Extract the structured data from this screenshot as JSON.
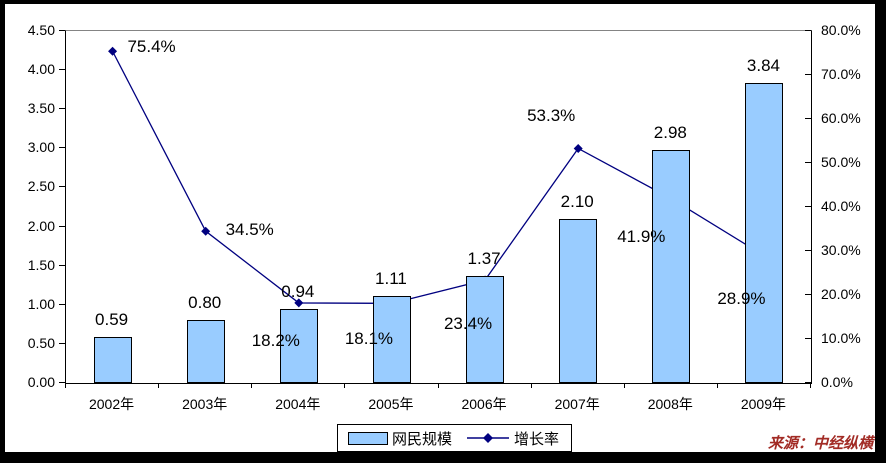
{
  "source_label": "来源：中经纵横",
  "chart_data": {
    "type": "combo-bar-line",
    "categories": [
      "2002年",
      "2003年",
      "2004年",
      "2005年",
      "2006年",
      "2007年",
      "2008年",
      "2009年"
    ],
    "series": [
      {
        "name": "网民规模",
        "type": "bar",
        "axis": "left",
        "color": "#99CCFF",
        "values": [
          0.59,
          0.8,
          0.94,
          1.11,
          1.37,
          2.1,
          2.98,
          3.84
        ],
        "labels": [
          "0.59",
          "0.80",
          "0.94",
          "1.11",
          "1.37",
          "2.10",
          "2.98",
          "3.84"
        ]
      },
      {
        "name": "增长率",
        "type": "line",
        "axis": "right",
        "color": "#000080",
        "marker": "diamond",
        "values": [
          75.4,
          34.5,
          18.2,
          18.1,
          23.4,
          53.3,
          41.9,
          28.9
        ],
        "labels": [
          "75.4%",
          "34.5%",
          "18.2%",
          "18.1%",
          "23.4%",
          "53.3%",
          "41.9%",
          "28.9%"
        ],
        "label_offsets": [
          [
            40,
            -3
          ],
          [
            45,
            0
          ],
          [
            -22,
            39
          ],
          [
            -22,
            37
          ],
          [
            -16,
            45
          ],
          [
            -26,
            -31
          ],
          [
            -29,
            39
          ],
          [
            -22,
            44
          ]
        ]
      }
    ],
    "left_axis": {
      "min": 0,
      "max": 4.5,
      "step": 0.5,
      "tick_labels": [
        "0.00",
        "0.50",
        "1.00",
        "1.50",
        "2.00",
        "2.50",
        "3.00",
        "3.50",
        "4.00",
        "4.50"
      ]
    },
    "right_axis": {
      "min": 0,
      "max": 80,
      "step": 10,
      "tick_labels": [
        "0.0%",
        "10.0%",
        "20.0%",
        "30.0%",
        "40.0%",
        "50.0%",
        "60.0%",
        "70.0%",
        "80.0%"
      ]
    },
    "grid": false,
    "legend_position": "bottom-center",
    "legend": [
      "网民规模",
      "增长率"
    ]
  }
}
